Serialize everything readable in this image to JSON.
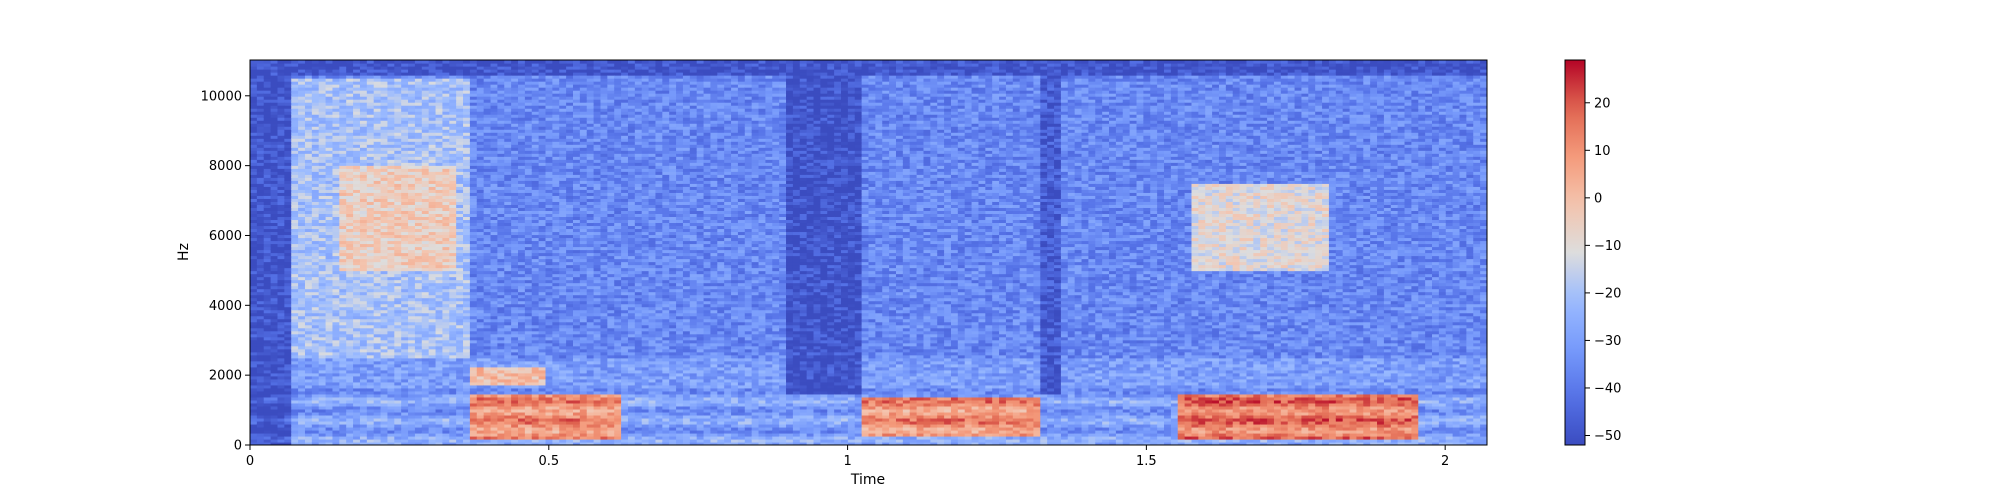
{
  "chart_data": {
    "type": "heatmap",
    "subtype": "spectrogram",
    "title": "",
    "xlabel": "Time",
    "ylabel": "Hz",
    "xlim": [
      0,
      2.07
    ],
    "ylim": [
      0,
      11025
    ],
    "x_ticks": [
      0,
      0.5,
      1,
      1.5,
      2
    ],
    "x_tick_labels": [
      "0",
      "0.5",
      "1",
      "1.5",
      "2"
    ],
    "y_ticks": [
      0,
      2000,
      4000,
      6000,
      8000,
      10000
    ],
    "y_tick_labels": [
      "0",
      "2000",
      "4000",
      "6000",
      "8000",
      "10000"
    ],
    "colormap": "coolwarm",
    "colorbar": {
      "vmin": -52,
      "vmax": 29,
      "ticks": [
        -50,
        -40,
        -30,
        -20,
        -10,
        0,
        10,
        20
      ],
      "tick_labels": [
        "−50",
        "−40",
        "−30",
        "−20",
        "−10",
        "0",
        "10",
        "20"
      ]
    },
    "grid": false,
    "regions": [
      {
        "t0": 0.0,
        "t1": 0.07,
        "f0": 0,
        "f1": 11025,
        "level": -50
      },
      {
        "t0": 0.07,
        "t1": 0.37,
        "f0": 2500,
        "f1": 10500,
        "level": -20
      },
      {
        "t0": 0.15,
        "t1": 0.35,
        "f0": 5000,
        "f1": 8000,
        "level": -5
      },
      {
        "t0": 0.37,
        "t1": 0.62,
        "f0": 200,
        "f1": 1500,
        "level": 10
      },
      {
        "t0": 0.37,
        "t1": 0.5,
        "f0": 1700,
        "f1": 2200,
        "level": 0
      },
      {
        "t0": 0.9,
        "t1": 1.02,
        "f0": 1500,
        "f1": 11025,
        "level": -50
      },
      {
        "t0": 1.02,
        "t1": 1.32,
        "f0": 300,
        "f1": 1400,
        "level": 10
      },
      {
        "t0": 1.32,
        "t1": 1.36,
        "f0": 1500,
        "f1": 11025,
        "level": -48
      },
      {
        "t0": 1.55,
        "t1": 1.95,
        "f0": 200,
        "f1": 1500,
        "level": 14
      },
      {
        "t0": 1.58,
        "t1": 1.8,
        "f0": 5000,
        "f1": 7500,
        "level": -10
      }
    ]
  }
}
